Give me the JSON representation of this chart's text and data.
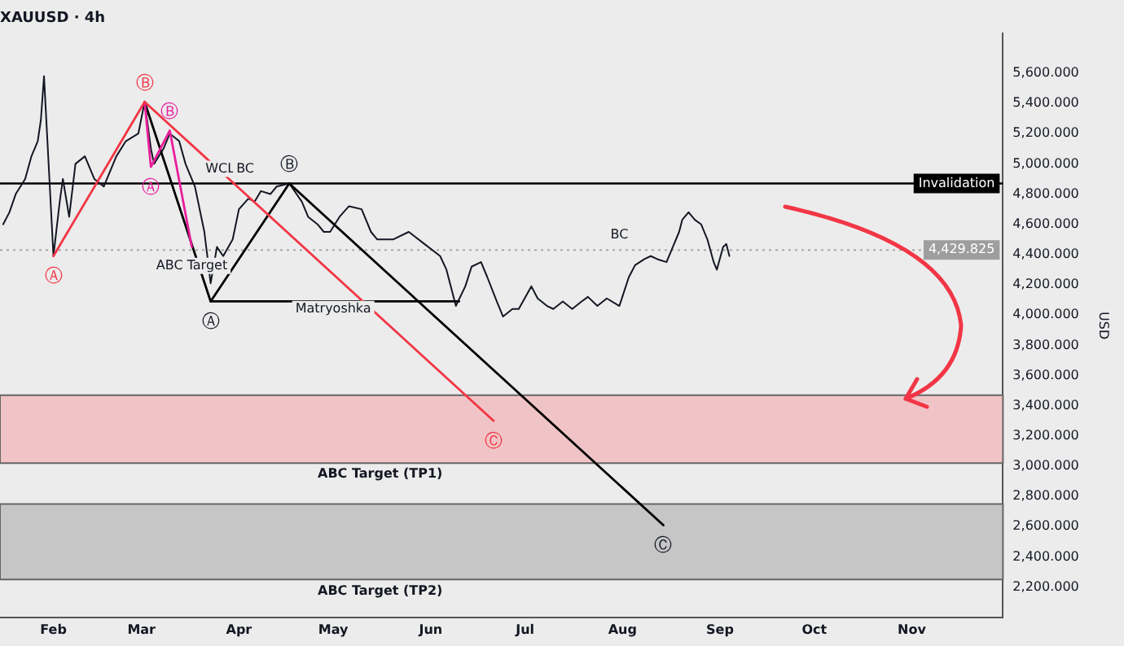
{
  "chart_data": {
    "type": "line",
    "title": "XAUUSD · 4h",
    "ylabel": "USD",
    "legend": false,
    "grid": false,
    "marker": "none",
    "x": [
      "--01-16",
      "--01-18",
      "--01-20",
      "--01-23",
      "--01-25",
      "--01-27",
      "--01-28",
      "--01-29",
      "--02-01",
      "--02-03",
      "--02-04",
      "--02-06",
      "--02-08",
      "--02-11",
      "--02-14",
      "--02-17",
      "--02-21",
      "--02-24",
      "--02-28",
      "--03-02",
      "--03-04",
      "--03-05",
      "--03-08",
      "--03-10",
      "--03-13",
      "--03-15",
      "--03-18",
      "--03-20",
      "--03-21",
      "--03-23",
      "--03-25",
      "--03-27",
      "--03-30",
      "--04-01",
      "--04-04",
      "--04-06",
      "--04-08",
      "--04-11",
      "--04-13",
      "--04-17",
      "--04-21",
      "--04-23",
      "--04-26",
      "--04-28",
      "--04-30",
      "--05-03",
      "--05-06",
      "--05-10",
      "--05-13",
      "--05-15",
      "--05-20",
      "--05-25",
      "--05-30",
      "--06-04",
      "--06-06",
      "--06-09",
      "--06-12",
      "--06-14",
      "--06-17",
      "--06-19",
      "--06-22",
      "--06-24",
      "--06-27",
      "--06-29",
      "--07-03",
      "--07-05",
      "--07-08",
      "--07-10",
      "--07-13",
      "--07-16",
      "--07-19",
      "--07-21",
      "--07-24",
      "--07-27",
      "--07-31",
      "--08-03",
      "--08-05",
      "--08-08",
      "--08-10",
      "--08-12",
      "--08-15",
      "--08-17",
      "--08-19",
      "--08-20",
      "--08-22",
      "--08-24",
      "--08-26",
      "--08-28",
      "--08-30",
      "--08-31",
      "--09-02",
      "--09-03",
      "--09-04"
    ],
    "series": [
      {
        "color": "#131722",
        "values": [
          4600,
          4680,
          4800,
          4900,
          5050,
          5150,
          5290,
          5580,
          4390,
          4750,
          4900,
          4650,
          5000,
          5050,
          4900,
          4850,
          5050,
          5150,
          5200,
          5410,
          5100,
          5000,
          5100,
          5200,
          5150,
          5000,
          4850,
          4650,
          4550,
          4210,
          4450,
          4390,
          4500,
          4700,
          4770,
          4750,
          4820,
          4800,
          4850,
          4870,
          4750,
          4650,
          4600,
          4550,
          4550,
          4650,
          4720,
          4700,
          4550,
          4500,
          4500,
          4550,
          4470,
          4390,
          4300,
          4060,
          4190,
          4320,
          4350,
          4250,
          4090,
          3990,
          4040,
          4040,
          4190,
          4110,
          4060,
          4040,
          4090,
          4040,
          4090,
          4120,
          4060,
          4110,
          4060,
          4250,
          4330,
          4370,
          4390,
          4370,
          4350,
          4450,
          4550,
          4630,
          4680,
          4630,
          4600,
          4500,
          4350,
          4300,
          4450,
          4470,
          4390
        ]
      },
      {
        "type": "line",
        "color": "#f23645",
        "x": [
          "--02-01",
          "--03-02",
          "--06-21"
        ],
        "values": [
          4390,
          5410,
          3300
        ]
      },
      {
        "type": "line",
        "color": "#e91e9c",
        "x": [
          "--03-02",
          "--03-04",
          "--03-10",
          "--03-17"
        ],
        "values": [
          5410,
          4980,
          5220,
          4450
        ]
      },
      {
        "type": "line",
        "color": "#000000",
        "x": [
          "--03-02",
          "--03-23",
          "--04-17",
          "--08-14"
        ],
        "values": [
          5410,
          4090,
          4870,
          2610
        ]
      },
      {
        "type": "line",
        "color": "#000000",
        "x": [
          "--03-23",
          "--06-10"
        ],
        "values": [
          4090,
          4090
        ]
      }
    ],
    "xlim": [
      "--01-15",
      "--11-30"
    ],
    "xticks": [
      {
        "value": "--02-01",
        "label": "Feb"
      },
      {
        "value": "--03-01",
        "label": "Mar"
      },
      {
        "value": "--04-01",
        "label": "Apr"
      },
      {
        "value": "--05-01",
        "label": "May"
      },
      {
        "value": "--06-01",
        "label": "Jun"
      },
      {
        "value": "--07-01",
        "label": "Jul"
      },
      {
        "value": "--08-01",
        "label": "Aug"
      },
      {
        "value": "--09-01",
        "label": "Sep"
      },
      {
        "value": "--10-01",
        "label": "Oct"
      },
      {
        "value": "--11-01",
        "label": "Nov"
      }
    ],
    "ylim": [
      2000,
      5860
    ],
    "yticks": [
      {
        "value": 2200,
        "label": "2,200.000"
      },
      {
        "value": 2400,
        "label": "2,400.000"
      },
      {
        "value": 2600,
        "label": "2,600.000"
      },
      {
        "value": 2800,
        "label": "2,800.000"
      },
      {
        "value": 3000,
        "label": "3,000.000"
      },
      {
        "value": 3200,
        "label": "3,200.000"
      },
      {
        "value": 3400,
        "label": "3,400.000"
      },
      {
        "value": 3600,
        "label": "3,600.000"
      },
      {
        "value": 3800,
        "label": "3,800.000"
      },
      {
        "value": 4000,
        "label": "4,000.000"
      },
      {
        "value": 4200,
        "label": "4,200.000"
      },
      {
        "value": 4400,
        "label": "4,400.000"
      },
      {
        "value": 4600,
        "label": "4,600.000"
      },
      {
        "value": 4800,
        "label": "4,800.000"
      },
      {
        "value": 5000,
        "label": "5,000.000"
      },
      {
        "value": 5200,
        "label": "5,200.000"
      },
      {
        "value": 5400,
        "label": "5,400.000"
      },
      {
        "value": 5600,
        "label": "5,600.000"
      }
    ],
    "ref_lines": [
      {
        "axis": "y",
        "value": 4870,
        "label": "Invalidation",
        "color": "#000000",
        "line_style": "solid"
      },
      {
        "axis": "y",
        "value": 4429.825,
        "label": "4,429.825",
        "color": "#9e9e9e",
        "line_style": "dotted"
      }
    ],
    "bands": [
      {
        "axis": "y",
        "from": 3020,
        "to": 3470,
        "label": "ABC Target (TP1)",
        "color": "#f0c4c6"
      },
      {
        "axis": "y",
        "from": 2250,
        "to": 2750,
        "label": "ABC Target (TP2)",
        "color": "#c6c6c6"
      }
    ],
    "annotations": [
      {
        "text": "Ⓐ",
        "x": "--02-01",
        "y": 4390
      },
      {
        "text": "Ⓑ",
        "x": "--03-02",
        "y": 5410
      },
      {
        "text": "Ⓒ",
        "x": "--06-21",
        "y": 3300
      },
      {
        "text": "Ⓐ",
        "x": "--03-04",
        "y": 4980
      },
      {
        "text": "Ⓑ",
        "x": "--03-10",
        "y": 5220
      },
      {
        "text": "Ⓐ",
        "x": "--03-23",
        "y": 4090
      },
      {
        "text": "Ⓑ",
        "x": "--04-17",
        "y": 4870
      },
      {
        "text": "Ⓒ",
        "x": "--08-14",
        "y": 2610
      },
      {
        "text": "WCL",
        "x": "--03-26",
        "y": 4870
      },
      {
        "text": "BC",
        "x": "--04-03",
        "y": 4870
      },
      {
        "text": "ABC Target",
        "x": "--03-17",
        "y": 4325
      },
      {
        "text": "Matryoshka",
        "x": "--05-01",
        "y": 4040
      },
      {
        "text": "BC",
        "x": "--07-31",
        "y": 4429.825
      }
    ]
  }
}
